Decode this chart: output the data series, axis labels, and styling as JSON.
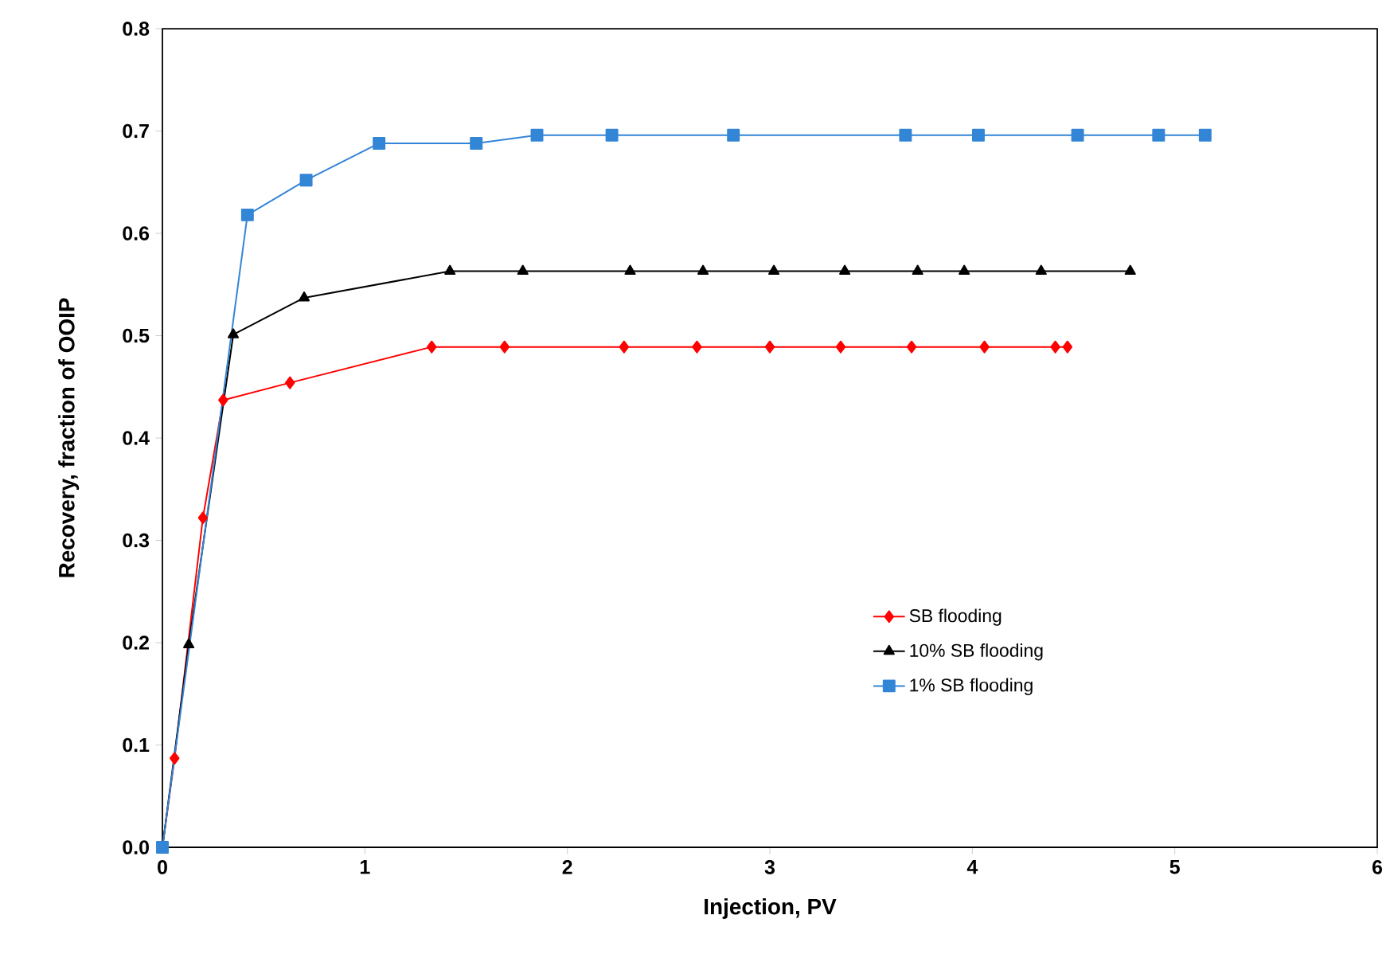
{
  "chart_data": {
    "type": "line",
    "xlabel": "Injection, PV",
    "ylabel": "Recovery, fraction of OOIP",
    "xlim": [
      0,
      6
    ],
    "xticks": [
      0,
      1,
      2,
      3,
      4,
      5,
      6
    ],
    "ylim": [
      0,
      0.8
    ],
    "yticks": [
      {
        "value": 0,
        "label": "0.0"
      },
      {
        "value": 0.1,
        "label": "0.1"
      },
      {
        "value": 0.2,
        "label": "0.2"
      },
      {
        "value": 0.3,
        "label": "0.3"
      },
      {
        "value": 0.4,
        "label": "0.4"
      },
      {
        "value": 0.5,
        "label": "0.5"
      },
      {
        "value": 0.6,
        "label": "0.6"
      },
      {
        "value": 0.7,
        "label": "0.7"
      },
      {
        "value": 0.8,
        "label": "0.8"
      }
    ],
    "grid": false,
    "legend": "bottom right",
    "line_style": "solid",
    "series": [
      {
        "name": "SB flooding",
        "color": "#ff0000",
        "marker": "diamond",
        "x": [
          0,
          0.06,
          0.2,
          0.3,
          0.63,
          1.33,
          1.69,
          2.28,
          2.64,
          3.0,
          3.35,
          3.7,
          4.06,
          4.41,
          4.47
        ],
        "values": [
          0,
          0.087,
          0.322,
          0.437,
          0.454,
          0.489,
          0.489,
          0.489,
          0.489,
          0.489,
          0.489,
          0.489,
          0.489,
          0.489,
          0.489
        ]
      },
      {
        "name": "10% SB flooding",
        "color": "#000000",
        "marker": "triangle",
        "x": [
          0,
          0.13,
          0.35,
          0.7,
          1.42,
          1.78,
          2.31,
          2.67,
          3.02,
          3.37,
          3.73,
          3.96,
          4.34,
          4.78
        ],
        "values": [
          0,
          0.198,
          0.501,
          0.537,
          0.563,
          0.563,
          0.563,
          0.563,
          0.563,
          0.563,
          0.563,
          0.563,
          0.563,
          0.563
        ]
      },
      {
        "name": "1% SB flooding",
        "color": "#3385d6",
        "marker": "square",
        "x": [
          0,
          0.42,
          0.71,
          1.07,
          1.55,
          1.85,
          2.22,
          2.82,
          3.67,
          4.03,
          4.52,
          4.92,
          5.15
        ],
        "values": [
          0,
          0.618,
          0.652,
          0.688,
          0.688,
          0.696,
          0.696,
          0.696,
          0.696,
          0.696,
          0.696,
          0.696,
          0.696
        ]
      }
    ]
  }
}
